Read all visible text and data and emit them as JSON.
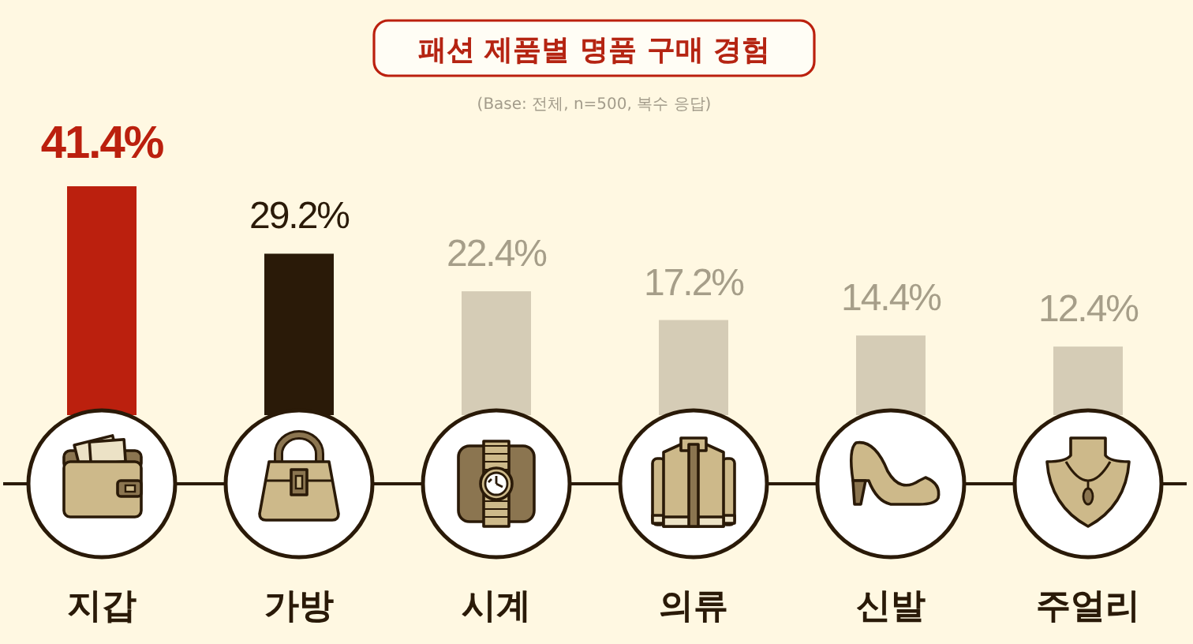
{
  "chart_data": {
    "type": "bar",
    "title": "패션 제품별 명품 구매 경험",
    "subtitle": "(Base: 전체, n=500, 복수 응답)",
    "categories": [
      "지갑",
      "가방",
      "시계",
      "의류",
      "신발",
      "주얼리"
    ],
    "values": [
      41.4,
      29.2,
      22.4,
      17.2,
      14.4,
      12.4
    ],
    "colors": [
      "#bb200e",
      "#2a1a08",
      "#d5ccb6",
      "#d5ccb6",
      "#d5ccb6",
      "#d5ccb6"
    ],
    "value_labels": [
      "41.4%",
      "29.2%",
      "22.4%",
      "17.2%",
      "14.4%",
      "12.4%"
    ]
  }
}
